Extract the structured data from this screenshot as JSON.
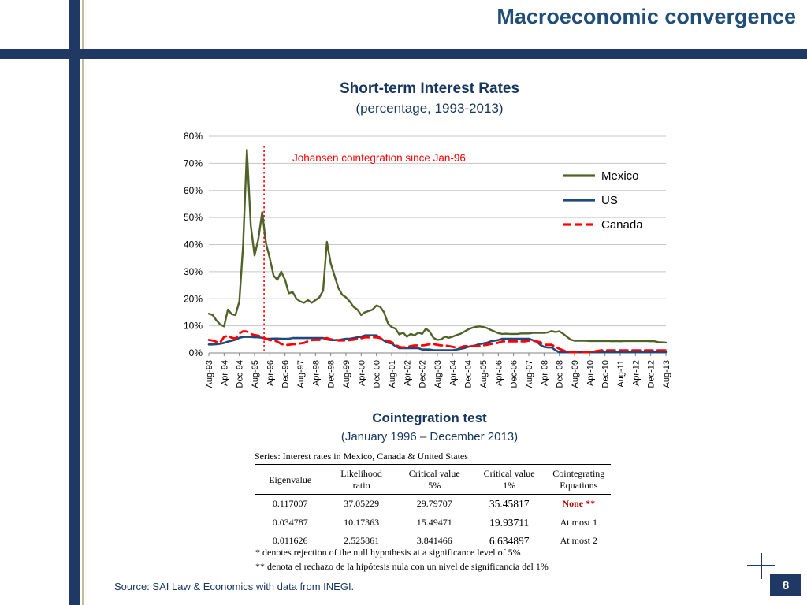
{
  "slide": {
    "title": "Macroeconomic convergence",
    "page_number": "8",
    "source": "Source: SAI Law & Economics with data from INEGI."
  },
  "chart": {
    "title": "Short-term Interest Rates",
    "subtitle": "(percentage, 1993-2013)"
  },
  "chart_data": {
    "type": "line",
    "title": "Short-term Interest Rates",
    "subtitle": "(percentage, 1993-2013)",
    "x_start": "Aug-1993",
    "x_end": "Aug-2013",
    "x_months_step": 2,
    "x_tick_labels": [
      "Aug-93",
      "Apr-94",
      "Dec-94",
      "Aug-95",
      "Apr-96",
      "Dec-96",
      "Aug-97",
      "Apr-98",
      "Dec-98",
      "Aug-99",
      "Apr-00",
      "Dec-00",
      "Aug-01",
      "Apr-02",
      "Dec-02",
      "Aug-03",
      "Apr-04",
      "Dec-04",
      "Aug-05",
      "Apr-06",
      "Dec-06",
      "Aug-07",
      "Apr-08",
      "Dec-08",
      "Aug-09",
      "Apr-10",
      "Dec-10",
      "Aug-11",
      "Apr-12",
      "Dec-12",
      "Aug-13"
    ],
    "y_ticks": [
      "0%",
      "10%",
      "20%",
      "30%",
      "40%",
      "50%",
      "60%",
      "70%",
      "80%"
    ],
    "ylim": [
      0,
      80
    ],
    "grid": true,
    "legend_position": "right",
    "annotation": {
      "text": "Johansen  cointegration since Jan-96",
      "x_label": "Jan-96",
      "x_index": 14.5,
      "color": "#FF0000"
    },
    "series": [
      {
        "name": "Mexico",
        "color": "#4F6228",
        "values": [
          14.5,
          14,
          12,
          10.5,
          9.8,
          16,
          14.3,
          14,
          19,
          40,
          75,
          47,
          36,
          42,
          52,
          40.5,
          35,
          28.5,
          27,
          30,
          27,
          22,
          22.5,
          20,
          19,
          18.5,
          19.5,
          18.5,
          19.5,
          20.5,
          23,
          41,
          33,
          28.5,
          24,
          21.5,
          20.5,
          19,
          17,
          16,
          14,
          15,
          15.5,
          16,
          17.5,
          17,
          15,
          11,
          9.5,
          9,
          6.8,
          7.5,
          6,
          7,
          6.5,
          7.5,
          7,
          9,
          7.8,
          5.5,
          4.8,
          5,
          6,
          5.6,
          6,
          6.6,
          7,
          7.8,
          8.6,
          9.2,
          9.6,
          9.8,
          9.6,
          9.2,
          8.5,
          7.9,
          7.3,
          7,
          7.1,
          7,
          7,
          7,
          7.2,
          7.2,
          7.2,
          7.4,
          7.4,
          7.4,
          7.4,
          7.6,
          8.1,
          7.7,
          8,
          7.1,
          6,
          4.9,
          4.5,
          4.5,
          4.5,
          4.5,
          4.4,
          4.4,
          4.4,
          4.4,
          4.4,
          4.4,
          4.3,
          4.4,
          4.3,
          4.4,
          4.4,
          4.4,
          4.4,
          4.4,
          4.4,
          4.4,
          4.3,
          4.3,
          4,
          3.9,
          3.8
        ]
      },
      {
        "name": "US",
        "color": "#1F497D",
        "values": [
          3.1,
          3.1,
          3.2,
          3.4,
          3.7,
          4.2,
          4.5,
          4.9,
          5.6,
          5.9,
          6,
          5.9,
          5.8,
          5.8,
          5.6,
          5.2,
          5.25,
          5.3,
          5.3,
          5.25,
          5.25,
          5.25,
          5.5,
          5.5,
          5.5,
          5.5,
          5.5,
          5.5,
          5.5,
          5.5,
          5.5,
          5,
          4.75,
          4.75,
          4.75,
          5,
          5.25,
          5.25,
          5.5,
          5.75,
          6,
          6.5,
          6.5,
          6.5,
          6.5,
          5.5,
          4.5,
          3.75,
          3.5,
          2.5,
          1.75,
          1.75,
          1.75,
          1.75,
          1.75,
          1.75,
          1.25,
          1.25,
          1.25,
          1,
          1,
          1,
          1,
          1,
          1,
          1.25,
          1.5,
          1.75,
          2.25,
          2.5,
          2.75,
          3.25,
          3.5,
          3.75,
          4.25,
          4.5,
          4.75,
          5.25,
          5.25,
          5.25,
          5.25,
          5.25,
          5.25,
          5.25,
          5.25,
          4.75,
          4.25,
          3,
          2.25,
          2,
          2,
          1,
          0.25,
          0.25,
          0.25,
          0.25,
          0.25,
          0.25,
          0.25,
          0.25,
          0.25,
          0.25,
          0.25,
          0.25,
          0.25,
          0.25,
          0.25,
          0.25,
          0.25,
          0.25,
          0.25,
          0.25,
          0.25,
          0.25,
          0.25,
          0.25,
          0.25,
          0.25,
          0.25,
          0.25,
          0.25
        ]
      },
      {
        "name": "Canada",
        "color": "#FF0000",
        "dash": true,
        "values": [
          4.8,
          4.6,
          4.1,
          3.9,
          5.9,
          6.3,
          5.6,
          5.3,
          7.2,
          8,
          7.9,
          7,
          6.6,
          6.4,
          5.8,
          5.2,
          4.7,
          4.6,
          4.2,
          3.3,
          2.9,
          3,
          3.2,
          3.2,
          3.5,
          3.7,
          4.3,
          4.7,
          4.8,
          4.8,
          5.3,
          5.5,
          5,
          5,
          4.6,
          4.6,
          4.6,
          4.75,
          4.9,
          5.2,
          5.4,
          5.75,
          5.75,
          5.75,
          5.75,
          5.5,
          4.75,
          4.5,
          4,
          3,
          2.25,
          2,
          2.25,
          2.5,
          2.75,
          2.75,
          2.75,
          2.9,
          3.25,
          3.25,
          3,
          2.75,
          2.75,
          2.5,
          2.25,
          2,
          2,
          2.5,
          2.5,
          2.5,
          2.5,
          2.5,
          2.75,
          3,
          3.25,
          3.5,
          3.75,
          4.25,
          4.25,
          4.25,
          4.25,
          4.25,
          4.25,
          4.25,
          4.5,
          4.5,
          4.25,
          4,
          3,
          3,
          3,
          2.25,
          1.5,
          1,
          0.5,
          0.25,
          0.25,
          0.25,
          0.25,
          0.25,
          0.25,
          0.5,
          0.75,
          1,
          1,
          1,
          1,
          1,
          1,
          1,
          1,
          1,
          1,
          1,
          1,
          1,
          1,
          1,
          1,
          1,
          1
        ]
      }
    ]
  },
  "cointegration": {
    "title": "Cointegration test",
    "subtitle": "(January 1996 – December 2013)",
    "series_note": "Series: Interest rates in Mexico, Canada & United States",
    "table": {
      "headers": [
        {
          "line1": "Eigenvalue"
        },
        {
          "line1": "Likelihood",
          "line2": "ratio"
        },
        {
          "line1": "Critical value",
          "line2": "5%"
        },
        {
          "line1": "Critical value",
          "line2": "1%"
        },
        {
          "line1": "Cointegrating",
          "line2": "Equations"
        }
      ],
      "rows": [
        {
          "eigenvalue": "0.117007",
          "likelihood_ratio": "37.05229",
          "critical_5": "29.79707",
          "critical_1": "35.45817",
          "equations": "None **",
          "equations_red": true
        },
        {
          "eigenvalue": "0.034787",
          "likelihood_ratio": "10.17363",
          "critical_5": "15.49471",
          "critical_1": "19.93711",
          "equations": "At most 1",
          "equations_red": false
        },
        {
          "eigenvalue": "0.011626",
          "likelihood_ratio": "2.525861",
          "critical_5": "3.841466",
          "critical_1": "6.634897",
          "equations": "At most 2",
          "equations_red": false
        }
      ]
    },
    "footnote1": "* denotes rejection of the null hypothesis at a significance level of 5%",
    "footnote2": "** denota el rechazo de la hipótesis nula con un nivel de significancia del 1%"
  },
  "colors": {
    "accent_navy": "#1F3864",
    "accent_tan": "#C8BE96",
    "title_text": "#17365D",
    "mexico_line": "#4F6228",
    "us_line": "#1F497D",
    "canada_line": "#FF0000",
    "annotation_red": "#FF0000",
    "table_highlight_red": "#C00000"
  }
}
